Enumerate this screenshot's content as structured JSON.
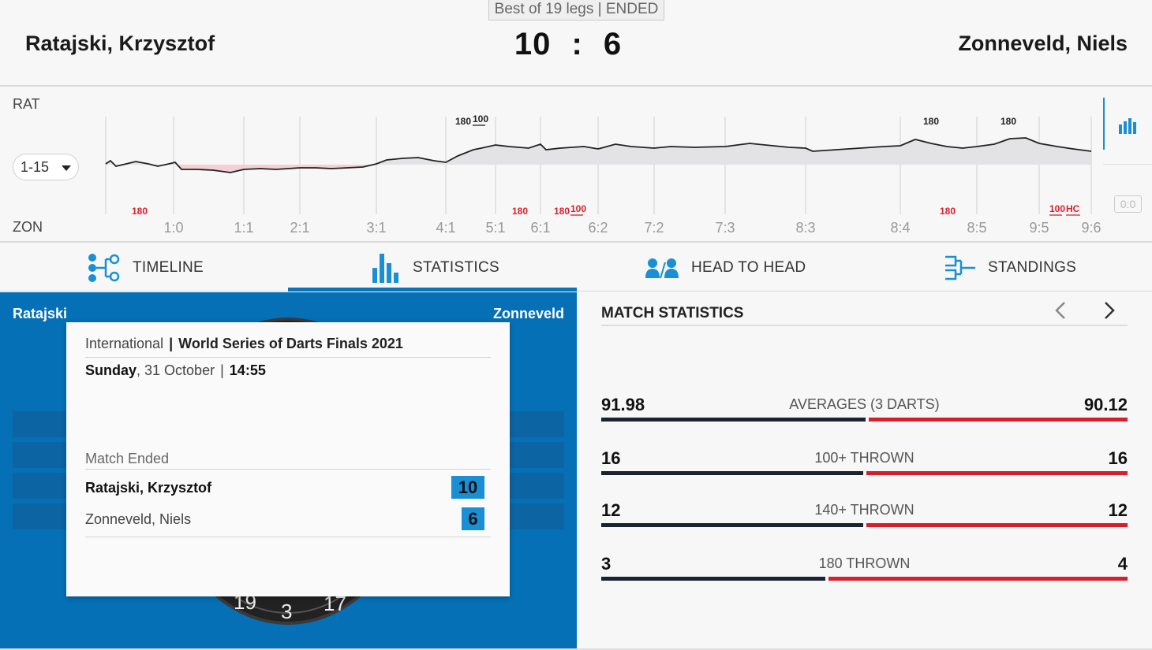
{
  "header": {
    "format": "Best of 19 legs | ENDED",
    "home_player": "Ratajski, Krzysztof",
    "away_player": "Zonneveld, Niels",
    "home_score": "10",
    "separator": ":",
    "away_score": "6"
  },
  "timeline": {
    "home_abbr": "RAT",
    "away_abbr": "ZON",
    "range": "1-15",
    "score_box": "0:0",
    "leg_scores": [
      "1:0",
      "1:1",
      "2:1",
      "3:1",
      "4:1",
      "5:1",
      "6:1",
      "6:2",
      "7:2",
      "7:3",
      "8:3",
      "8:4",
      "8:5",
      "9:5",
      "9:6"
    ],
    "home_markers": [
      "180",
      "100",
      "180",
      "180"
    ],
    "away_markers": [
      "180",
      "180",
      "180",
      "100",
      "180",
      "100",
      "HC"
    ],
    "colors": {
      "home_fill": "#e3e3e6",
      "away_fill": "#f6cfd3",
      "line": "#222222",
      "home_marker": "#222222",
      "away_marker": "#d71f2c"
    }
  },
  "tabs": [
    {
      "label": "TIMELINE",
      "icon": "timeline-icon"
    },
    {
      "label": "STATISTICS",
      "icon": "bar-chart-icon"
    },
    {
      "label": "HEAD TO HEAD",
      "icon": "head-to-head-icon"
    },
    {
      "label": "STANDINGS",
      "icon": "bracket-icon"
    }
  ],
  "left_panel": {
    "home_short": "Ratajski",
    "away_short": "Zonneveld",
    "board_numbers": [
      "19",
      "3",
      "17"
    ],
    "popup": {
      "category": "International",
      "separator": "|",
      "tournament": "World Series of Darts Finals 2021",
      "day": "Sunday",
      "date": ", 31 October",
      "time_sep": "|",
      "time": "14:55",
      "status": "Match Ended",
      "home_player": "Ratajski, Krzysztof",
      "home_score": "10",
      "away_player": "Zonneveld, Niels",
      "away_score": "6"
    }
  },
  "match_stats": {
    "title": "MATCH STATISTICS",
    "prev_icon": "chevron-left-icon",
    "next_icon": "chevron-right-icon",
    "rows": [
      {
        "label": "AVERAGES (3 DARTS)",
        "home": "91.98",
        "away": "90.12",
        "home_val": 91.98,
        "away_val": 90.12
      },
      {
        "label": "100+ THROWN",
        "home": "16",
        "away": "16",
        "home_val": 16,
        "away_val": 16
      },
      {
        "label": "140+ THROWN",
        "home": "12",
        "away": "12",
        "home_val": 12,
        "away_val": 12
      },
      {
        "label": "180 THROWN",
        "home": "3",
        "away": "4",
        "home_val": 3,
        "away_val": 4
      }
    ],
    "colors": {
      "home": "#1a2233",
      "away": "#d71f2c"
    }
  }
}
